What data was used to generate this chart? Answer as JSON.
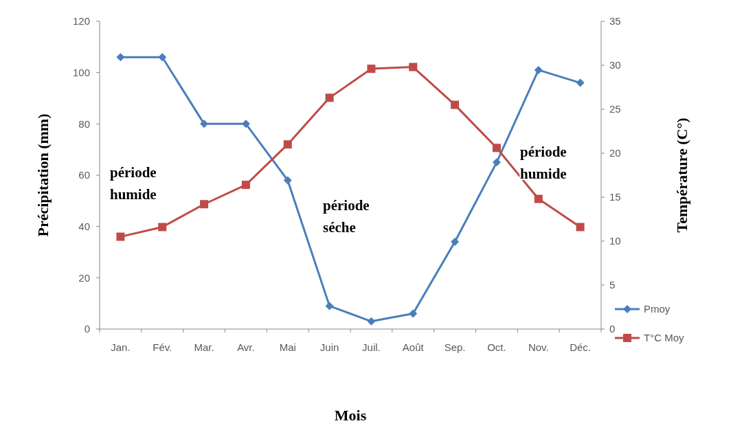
{
  "chart_data": {
    "type": "line",
    "xlabel": "Mois",
    "ylabel": "Précipitation (mm)",
    "y2label": "Température (C°)",
    "categories": [
      "Jan.",
      "Fév.",
      "Mar.",
      "Avr.",
      "Mai",
      "Juin",
      "Juil.",
      "Août",
      "Sep.",
      "Oct.",
      "Nov.",
      "Déc."
    ],
    "series": [
      {
        "name": "Pmoy",
        "color": "#4a7ebb",
        "marker": "diamond",
        "values": [
          106,
          106,
          80,
          80,
          58,
          9,
          3,
          6,
          34,
          65,
          101,
          96
        ]
      },
      {
        "name": "T°C Moy",
        "color": "#be4b48",
        "marker": "square",
        "axis": "y2",
        "values": [
          10.5,
          11.6,
          14.2,
          16.4,
          21.0,
          26.3,
          29.6,
          29.8,
          25.5,
          20.6,
          14.8,
          11.6
        ]
      }
    ],
    "ylim": [
      0,
      120
    ],
    "yticks": [
      0,
      20,
      40,
      60,
      80,
      100,
      120
    ],
    "y2lim": [
      0,
      35
    ],
    "y2ticks": [
      0,
      5,
      10,
      15,
      20,
      25,
      30,
      35
    ],
    "grid": false,
    "legend": "right",
    "line_style": "solid",
    "annotations": [
      "période humide",
      "période séche",
      "période humide"
    ]
  }
}
